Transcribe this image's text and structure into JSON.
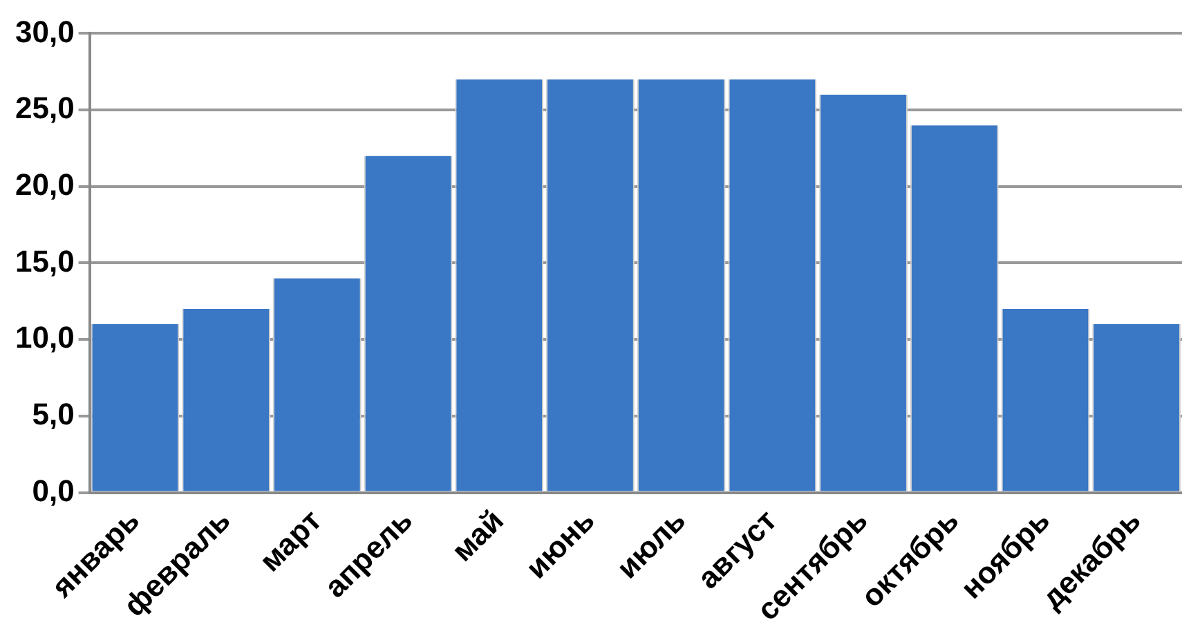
{
  "chart_data": {
    "type": "bar",
    "categories": [
      "январь",
      "февраль",
      "март",
      "апрель",
      "май",
      "июнь",
      "июль",
      "август",
      "сентябрь",
      "октябрь",
      "ноябрь",
      "декабрь"
    ],
    "values": [
      11,
      12,
      14,
      22,
      27,
      27,
      27,
      27,
      26,
      24,
      12,
      11
    ],
    "color": "#3a77c4",
    "ylim": [
      0,
      30
    ],
    "yticks": [
      {
        "value": 0,
        "label": "0,0"
      },
      {
        "value": 5,
        "label": "5,0"
      },
      {
        "value": 10,
        "label": "10,0"
      },
      {
        "value": 15,
        "label": "15,0"
      },
      {
        "value": 20,
        "label": "20,0"
      },
      {
        "value": 25,
        "label": "25,0"
      },
      {
        "value": 30,
        "label": "30,0"
      }
    ],
    "grid": "y"
  }
}
